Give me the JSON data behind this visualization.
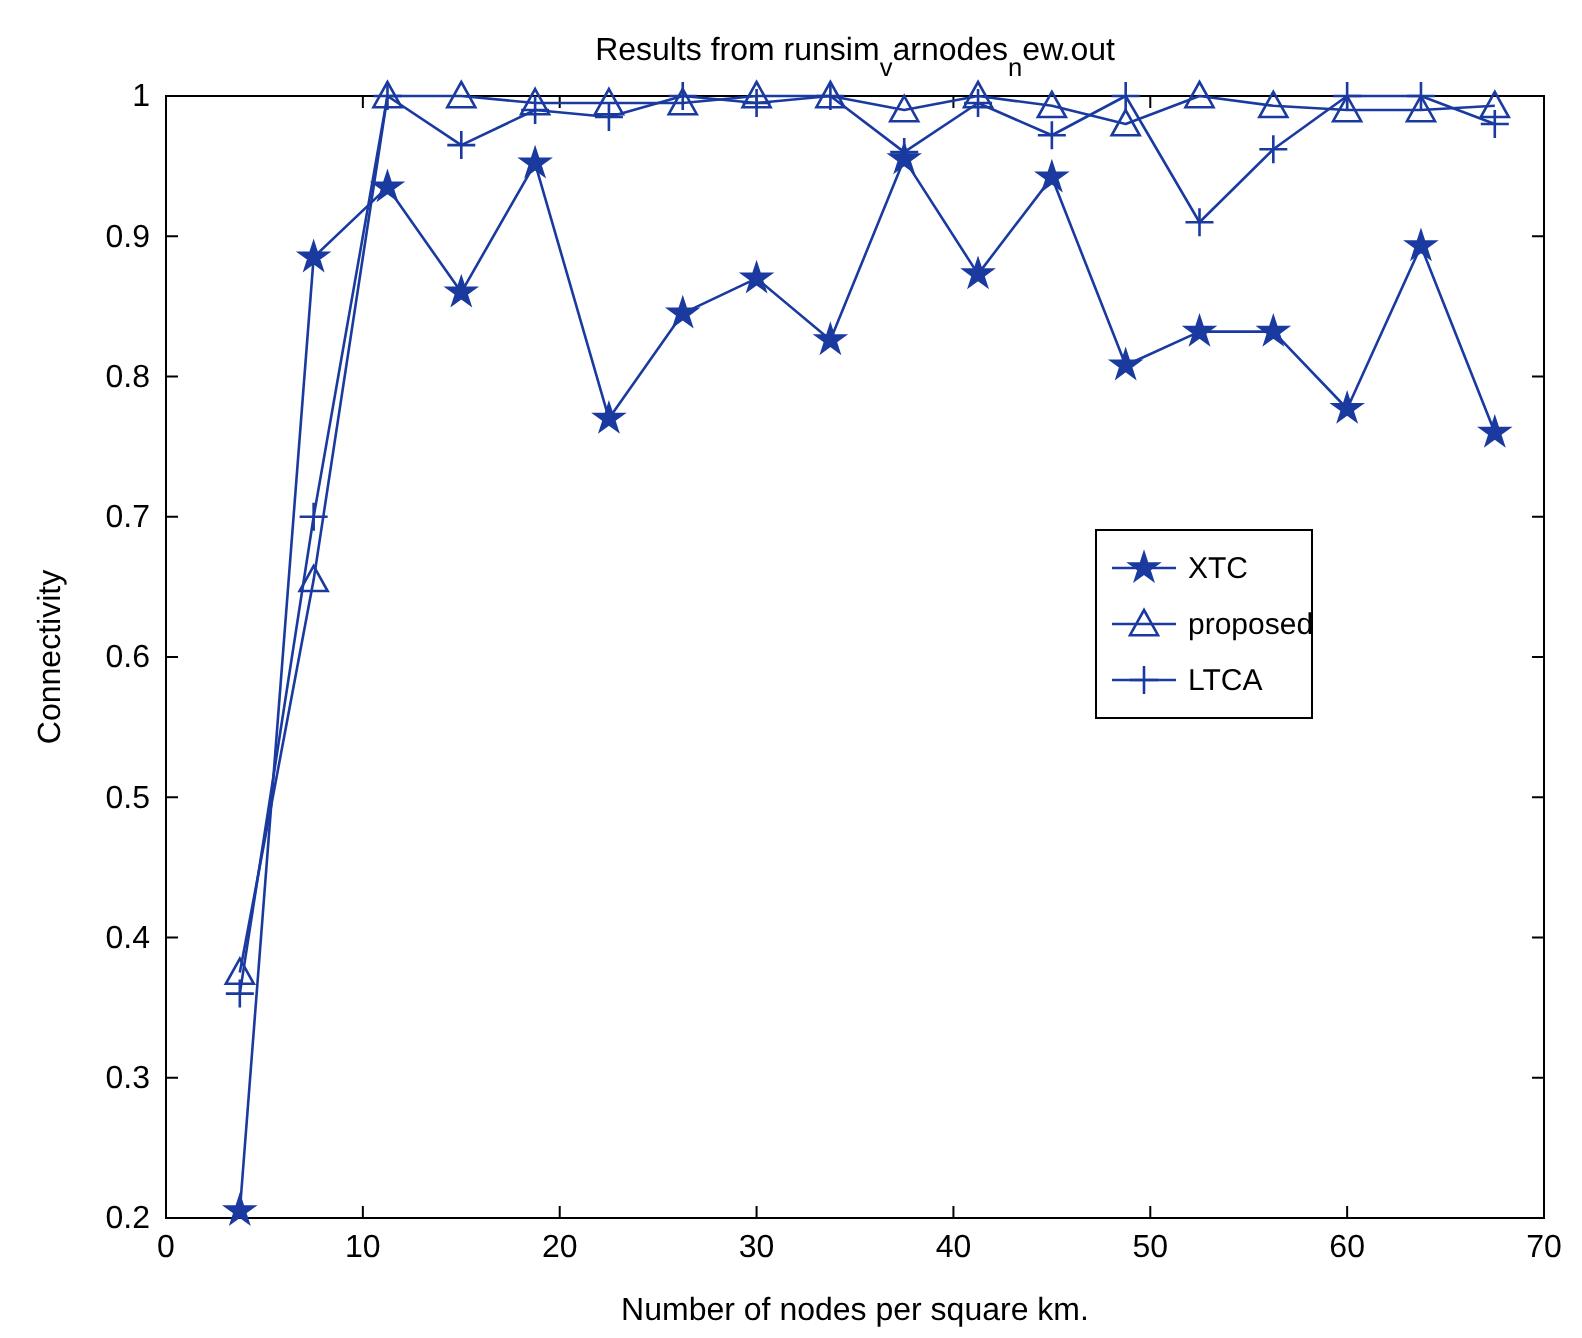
{
  "chart_data": {
    "type": "line",
    "title": "Results from runsim$_{v}$arnodes$_{n}$ew.out",
    "xlabel": "Number of nodes per square km.",
    "ylabel": "Connectivity",
    "x": [
      3.75,
      7.5,
      11.25,
      15,
      18.75,
      22.5,
      26.25,
      30,
      33.75,
      37.5,
      41.25,
      45,
      48.75,
      52.5,
      56.25,
      60,
      63.75,
      67.5
    ],
    "series": [
      {
        "name": "XTC",
        "color": "#1a3aa0",
        "marker": "star",
        "values": [
          0.205,
          0.885,
          0.935,
          0.86,
          0.952,
          0.77,
          0.845,
          0.87,
          0.826,
          0.955,
          0.873,
          0.942,
          0.808,
          0.832,
          0.832,
          0.777,
          0.893,
          0.76
        ]
      },
      {
        "name": "proposed",
        "color": "#1a3aa0",
        "marker": "triangle",
        "values": [
          0.375,
          0.655,
          1.0,
          1.0,
          0.995,
          0.995,
          0.995,
          1.0,
          1.0,
          0.99,
          1.0,
          0.993,
          0.98,
          1.0,
          0.993,
          0.99,
          0.99,
          0.993
        ]
      },
      {
        "name": "LTCA",
        "color": "#1a3aa0",
        "marker": "cross",
        "values": [
          0.36,
          0.7,
          1.0,
          0.965,
          0.99,
          0.985,
          1.0,
          0.995,
          1.0,
          0.96,
          0.995,
          0.972,
          1.0,
          0.91,
          0.962,
          1.0,
          1.0,
          0.98
        ]
      }
    ],
    "xlim": [
      0,
      70
    ],
    "xticks": [
      0,
      10,
      20,
      30,
      40,
      50,
      60,
      70
    ],
    "ylim": [
      0.2,
      1
    ],
    "yticks": [
      0.2,
      0.3,
      0.4,
      0.5,
      0.6,
      0.7,
      0.8,
      0.9,
      1
    ],
    "grid": false,
    "legend": "right",
    "line_style": "solid"
  }
}
